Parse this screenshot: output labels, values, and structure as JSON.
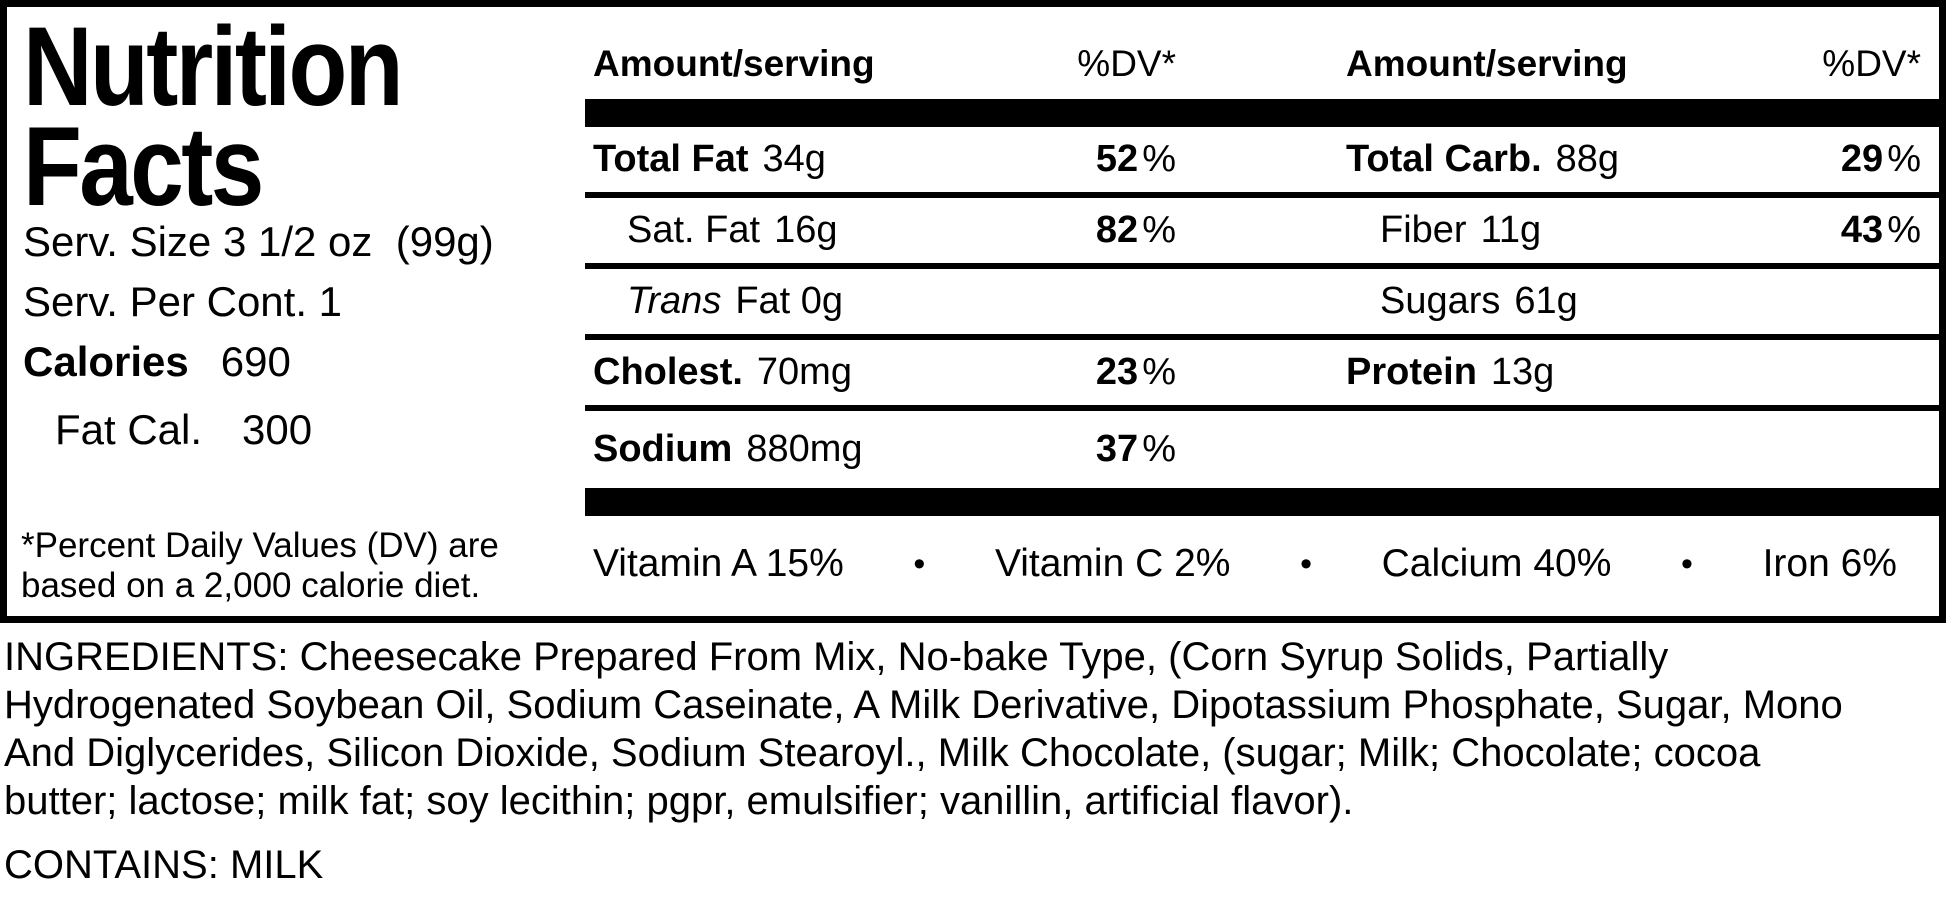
{
  "label": {
    "title_line1": "Nutrition",
    "title_line2": "Facts",
    "serving_size": "Serv. Size 3 1/2 oz  (99g)",
    "servings_per_container": "Serv. Per Cont. 1",
    "calories_label": "Calories",
    "calories_value": "690",
    "fat_calories_label": "Fat Cal.",
    "fat_calories_value": "300",
    "footnote_line1": "*Percent Daily Values (DV) are",
    "footnote_line2": "based on a 2,000 calorie diet."
  },
  "table": {
    "header": {
      "amount_label": "Amount/serving",
      "dv_label": "%DV*"
    },
    "rows": [
      {
        "n1": "Total Fat",
        "a1": "34g",
        "d1": "52",
        "s1": "%",
        "n2": "Total Carb.",
        "a2": "88g",
        "d2": "29",
        "s2": "%"
      },
      {
        "n1": "Sat. Fat",
        "a1": "16g",
        "d1": "82",
        "s1": "%",
        "n2": "Fiber",
        "a2": "11g",
        "d2": "43",
        "s2": "%"
      },
      {
        "n1": "Trans",
        "a1": "Fat 0g",
        "d1": "",
        "s1": "",
        "n2": "Sugars",
        "a2": "61g",
        "d2": "",
        "s2": ""
      },
      {
        "n1": "Cholest.",
        "a1": "70mg",
        "d1": "23",
        "s1": "%",
        "n2": "Protein",
        "a2": "13g",
        "d2": "",
        "s2": ""
      },
      {
        "n1": "Sodium",
        "a1": "880mg",
        "d1": "37",
        "s1": "%",
        "n2": "",
        "a2": "",
        "d2": "",
        "s2": ""
      }
    ],
    "vitamins": {
      "bullet": "•",
      "items": [
        "Vitamin A 15%",
        "Vitamin C 2%",
        "Calcium 40%",
        "Iron 6%"
      ]
    }
  },
  "ingredients": {
    "lines": [
      "INGREDIENTS: Cheesecake Prepared From Mix, No-bake Type, (Corn Syrup Solids, Partially",
      "Hydrogenated Soybean Oil, Sodium Caseinate, A Milk Derivative, Dipotassium Phosphate, Sugar, Mono",
      "And Diglycerides, Silicon Dioxide, Sodium Stearoyl., Milk Chocolate, (sugar; Milk; Chocolate; cocoa",
      "butter; lactose; milk fat; soy lecithin; pgpr, emulsifier; vanillin, artificial flavor)."
    ],
    "contains": "CONTAINS: MILK"
  },
  "colors": {
    "foreground": "#000000",
    "background": "#ffffff"
  }
}
